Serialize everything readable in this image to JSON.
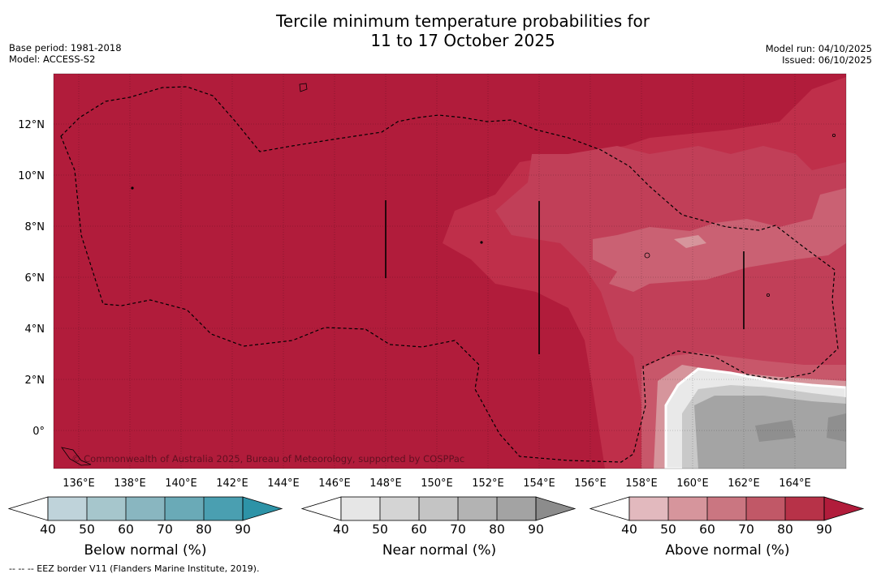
{
  "title_line1": "Tercile minimum temperature probabilities for",
  "title_line2": "11 to 17 October 2025",
  "meta_left": {
    "base_period": "Base period: 1981-2018",
    "model": "Model: ACCESS-S2"
  },
  "meta_right": {
    "model_run": "Model run: 04/10/2025",
    "issued": "Issued: 06/10/2025"
  },
  "map": {
    "lon_labels": [
      "136°E",
      "138°E",
      "140°E",
      "142°E",
      "144°E",
      "146°E",
      "148°E",
      "150°E",
      "152°E",
      "154°E",
      "156°E",
      "158°E",
      "160°E",
      "162°E",
      "164°E"
    ],
    "lat_labels": [
      "12°N",
      "10°N",
      "8°N",
      "6°N",
      "4°N",
      "2°N",
      "0°"
    ],
    "copyright": "© Commonwealth of Australia 2025, Bureau of Meteorology, supported by COSPPac"
  },
  "colorbars": [
    {
      "name": "below",
      "label": "Below normal (%)",
      "ticks": [
        "40",
        "50",
        "60",
        "70",
        "80",
        "90"
      ],
      "colors": [
        "#bfd3da",
        "#a6c6cc",
        "#89b6c0",
        "#6aaab7",
        "#4a9fb1",
        "#2d93a7"
      ]
    },
    {
      "name": "near",
      "label": "Near normal (%)",
      "ticks": [
        "40",
        "50",
        "60",
        "70",
        "80",
        "90"
      ],
      "colors": [
        "#e6e6e6",
        "#d4d4d4",
        "#c4c4c4",
        "#b3b3b3",
        "#a3a3a3",
        "#8c8c8c"
      ]
    },
    {
      "name": "above",
      "label": "Above normal (%)",
      "ticks": [
        "40",
        "50",
        "60",
        "70",
        "80",
        "90"
      ],
      "colors": [
        "#e2b9be",
        "#d6959c",
        "#ca7681",
        "#c15867",
        "#b73248",
        "#b11c3b"
      ]
    }
  ],
  "footnote": "--  --  -- EEZ border V11 (Flanders Marine Institute, 2019).",
  "palette": {
    "above_dark": "#b11c3b",
    "above_mid": "#c13350",
    "above_light": "#ca6173",
    "near_dark": "#9c9c9c",
    "near_light": "#c8c8c8"
  }
}
